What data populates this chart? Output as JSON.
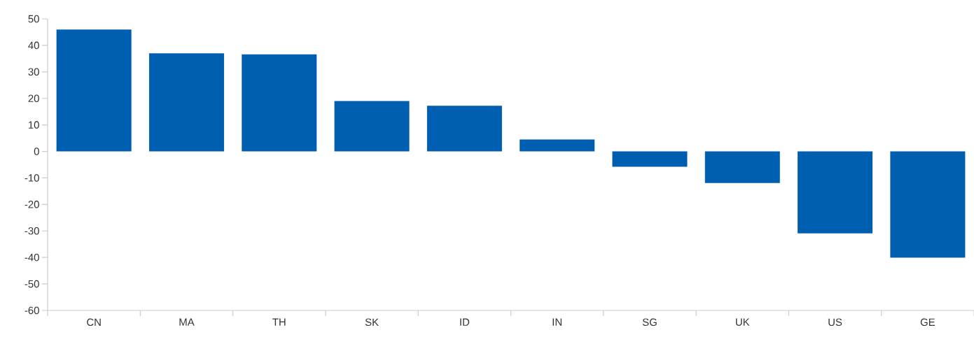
{
  "chart_data": {
    "type": "bar",
    "categories": [
      "CN",
      "MA",
      "TH",
      "SK",
      "ID",
      "IN",
      "SG",
      "UK",
      "US",
      "GE"
    ],
    "values": [
      46,
      37,
      36.6,
      19,
      17.2,
      4.5,
      -5.8,
      -11.9,
      -30.9,
      -40.1
    ],
    "color": "#005eb0",
    "ylim": [
      -60,
      50
    ],
    "yticks": [
      -60,
      -50,
      -40,
      -30,
      -20,
      -10,
      0,
      10,
      20,
      30,
      40,
      50
    ]
  }
}
